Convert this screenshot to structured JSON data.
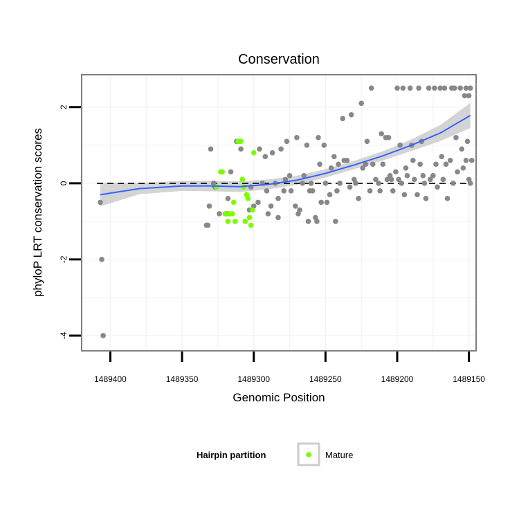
{
  "chart_data": {
    "type": "scatter",
    "title": "Conservation",
    "xlabel": "Genomic Position",
    "ylabel": "phyloP LRT conservation scores",
    "x_reversed": true,
    "xlim": [
      1489420,
      1489145
    ],
    "ylim": [
      -4.4,
      2.85
    ],
    "x_ticks": [
      1489400,
      1489350,
      1489300,
      1489250,
      1489200,
      1489150
    ],
    "y_ticks": [
      -4,
      -2,
      0,
      2
    ],
    "grid": true,
    "reference_line": {
      "y": 0,
      "style": "dashed"
    },
    "legend": {
      "title": "Hairpin partition",
      "placement": "bottom",
      "entries": [
        {
          "label": "Mature",
          "color": "#7cfc00"
        }
      ]
    },
    "colors": {
      "other": "#888888",
      "mature": "#7cfc00",
      "smooth": "#3366ff",
      "band": "#cccccc"
    },
    "series": [
      {
        "partition": "other",
        "points": [
          [
            1489407,
            -0.5
          ],
          [
            1489406,
            -2.0
          ],
          [
            1489405,
            -4.0
          ],
          [
            1489333,
            -1.1
          ],
          [
            1489332,
            -1.1
          ],
          [
            1489331,
            -0.6
          ],
          [
            1489330,
            0.9
          ],
          [
            1489328,
            0.0
          ],
          [
            1489327,
            -0.1
          ],
          [
            1489324,
            -0.8
          ],
          [
            1489319,
            -0.8
          ],
          [
            1489318,
            -0.4
          ],
          [
            1489316,
            0.3
          ],
          [
            1489312,
            1.1
          ],
          [
            1489309,
            0.9
          ],
          [
            1489303,
            -0.7
          ],
          [
            1489302,
            -0.1
          ],
          [
            1489300,
            -0.6
          ],
          [
            1489297,
            -0.5
          ],
          [
            1489296,
            0.9
          ],
          [
            1489294,
            0.0
          ],
          [
            1489292,
            0.7
          ],
          [
            1489291,
            -0.2
          ],
          [
            1489290,
            -0.8
          ],
          [
            1489288,
            -0.6
          ],
          [
            1489287,
            0.8
          ],
          [
            1489285,
            0.0
          ],
          [
            1489283,
            -0.4
          ],
          [
            1489283,
            -0.9
          ],
          [
            1489281,
            0.9
          ],
          [
            1489279,
            -0.2
          ],
          [
            1489278,
            0.1
          ],
          [
            1489277,
            1.1
          ],
          [
            1489275,
            0.2
          ],
          [
            1489274,
            -0.2
          ],
          [
            1489271,
            -0.6
          ],
          [
            1489270,
            1.2
          ],
          [
            1489269,
            -0.8
          ],
          [
            1489268,
            -0.7
          ],
          [
            1489266,
            0.0
          ],
          [
            1489265,
            0.2
          ],
          [
            1489263,
            1.0
          ],
          [
            1489262,
            -1.0
          ],
          [
            1489261,
            -0.2
          ],
          [
            1489260,
            0.0
          ],
          [
            1489259,
            -0.2
          ],
          [
            1489257,
            -0.9
          ],
          [
            1489256,
            -1.0
          ],
          [
            1489255,
            1.2
          ],
          [
            1489254,
            0.5
          ],
          [
            1489253,
            -0.5
          ],
          [
            1489251,
            1.0
          ],
          [
            1489250,
            0.0
          ],
          [
            1489249,
            -0.5
          ],
          [
            1489247,
            -0.3
          ],
          [
            1489246,
            0.4
          ],
          [
            1489244,
            0.7
          ],
          [
            1489243,
            -1.0
          ],
          [
            1489242,
            -0.2
          ],
          [
            1489241,
            0.5
          ],
          [
            1489240,
            0.0
          ],
          [
            1489238,
            1.7
          ],
          [
            1489237,
            0.6
          ],
          [
            1489235,
            0.6
          ],
          [
            1489233,
            -0.1
          ],
          [
            1489232,
            1.8
          ],
          [
            1489230,
            0.1
          ],
          [
            1489229,
            0.0
          ],
          [
            1489227,
            -0.4
          ],
          [
            1489225,
            2.1
          ],
          [
            1489224,
            0.4
          ],
          [
            1489222,
            0.5
          ],
          [
            1489221,
            1.1
          ],
          [
            1489219,
            -0.2
          ],
          [
            1489218,
            2.5
          ],
          [
            1489217,
            0.5
          ],
          [
            1489215,
            0.1
          ],
          [
            1489213,
            0.0
          ],
          [
            1489212,
            -0.2
          ],
          [
            1489211,
            1.3
          ],
          [
            1489210,
            0.5
          ],
          [
            1489208,
            1.2
          ],
          [
            1489207,
            0.1
          ],
          [
            1489206,
            1.2
          ],
          [
            1489205,
            0.2
          ],
          [
            1489204,
            0.1
          ],
          [
            1489203,
            -0.2
          ],
          [
            1489201,
            0.3
          ],
          [
            1489200,
            2.5
          ],
          [
            1489199,
            0.1
          ],
          [
            1489198,
            1.0
          ],
          [
            1489197,
            0.0
          ],
          [
            1489196,
            2.5
          ],
          [
            1489195,
            -0.3
          ],
          [
            1489194,
            0.4
          ],
          [
            1489193,
            0.2
          ],
          [
            1489191,
            2.5
          ],
          [
            1489190,
            1.0
          ],
          [
            1489189,
            0.6
          ],
          [
            1489188,
            0.1
          ],
          [
            1489186,
            -0.3
          ],
          [
            1489185,
            2.5
          ],
          [
            1489184,
            0.5
          ],
          [
            1489183,
            1.1
          ],
          [
            1489182,
            0.2
          ],
          [
            1489181,
            0.0
          ],
          [
            1489180,
            -0.4
          ],
          [
            1489178,
            2.5
          ],
          [
            1489177,
            0.1
          ],
          [
            1489175,
            0.2
          ],
          [
            1489174,
            2.5
          ],
          [
            1489173,
            0.5
          ],
          [
            1489172,
            -0.1
          ],
          [
            1489170,
            2.5
          ],
          [
            1489169,
            0.7
          ],
          [
            1489168,
            0.1
          ],
          [
            1489167,
            2.5
          ],
          [
            1489166,
            0.5
          ],
          [
            1489165,
            -0.4
          ],
          [
            1489163,
            0.6
          ],
          [
            1489162,
            2.5
          ],
          [
            1489161,
            0.0
          ],
          [
            1489160,
            2.5
          ],
          [
            1489159,
            1.2
          ],
          [
            1489158,
            0.3
          ],
          [
            1489156,
            2.5
          ],
          [
            1489155,
            0.9
          ],
          [
            1489154,
            0.4
          ],
          [
            1489153,
            2.3
          ],
          [
            1489152,
            2.5
          ],
          [
            1489151,
            1.1
          ],
          [
            1489150,
            2.3
          ],
          [
            1489149,
            2.5
          ],
          [
            1489148,
            0.6
          ],
          [
            1489150,
            0.1
          ],
          [
            1489149,
            0.0
          ],
          [
            1489152,
            0.6
          ]
        ]
      },
      {
        "partition": "Mature",
        "points": [
          [
            1489326,
            -0.1
          ],
          [
            1489323,
            0.3
          ],
          [
            1489322,
            0.3
          ],
          [
            1489320,
            -0.8
          ],
          [
            1489318,
            -1.0
          ],
          [
            1489317,
            -0.8
          ],
          [
            1489315,
            -0.8
          ],
          [
            1489314,
            -0.5
          ],
          [
            1489313,
            -1.0
          ],
          [
            1489311,
            1.1
          ],
          [
            1489310,
            1.1
          ],
          [
            1489309,
            1.1
          ],
          [
            1489308,
            0.1
          ],
          [
            1489307,
            -0.1
          ],
          [
            1489306,
            -1.0
          ],
          [
            1489305,
            -0.3
          ],
          [
            1489304,
            -0.4
          ],
          [
            1489303,
            -0.9
          ],
          [
            1489302,
            -1.1
          ],
          [
            1489301,
            -0.7
          ],
          [
            1489300,
            0.8
          ]
        ]
      }
    ],
    "smooth": {
      "x": [
        1489407,
        1489380,
        1489350,
        1489330,
        1489310,
        1489290,
        1489270,
        1489250,
        1489230,
        1489210,
        1489190,
        1489170,
        1489149
      ],
      "y": [
        -0.3,
        -0.14,
        -0.07,
        -0.07,
        -0.09,
        -0.03,
        0.08,
        0.26,
        0.48,
        0.72,
        1.0,
        1.32,
        1.78
      ],
      "band_half_width": [
        0.31,
        0.15,
        0.13,
        0.14,
        0.14,
        0.13,
        0.12,
        0.11,
        0.11,
        0.12,
        0.15,
        0.21,
        0.33
      ]
    }
  }
}
